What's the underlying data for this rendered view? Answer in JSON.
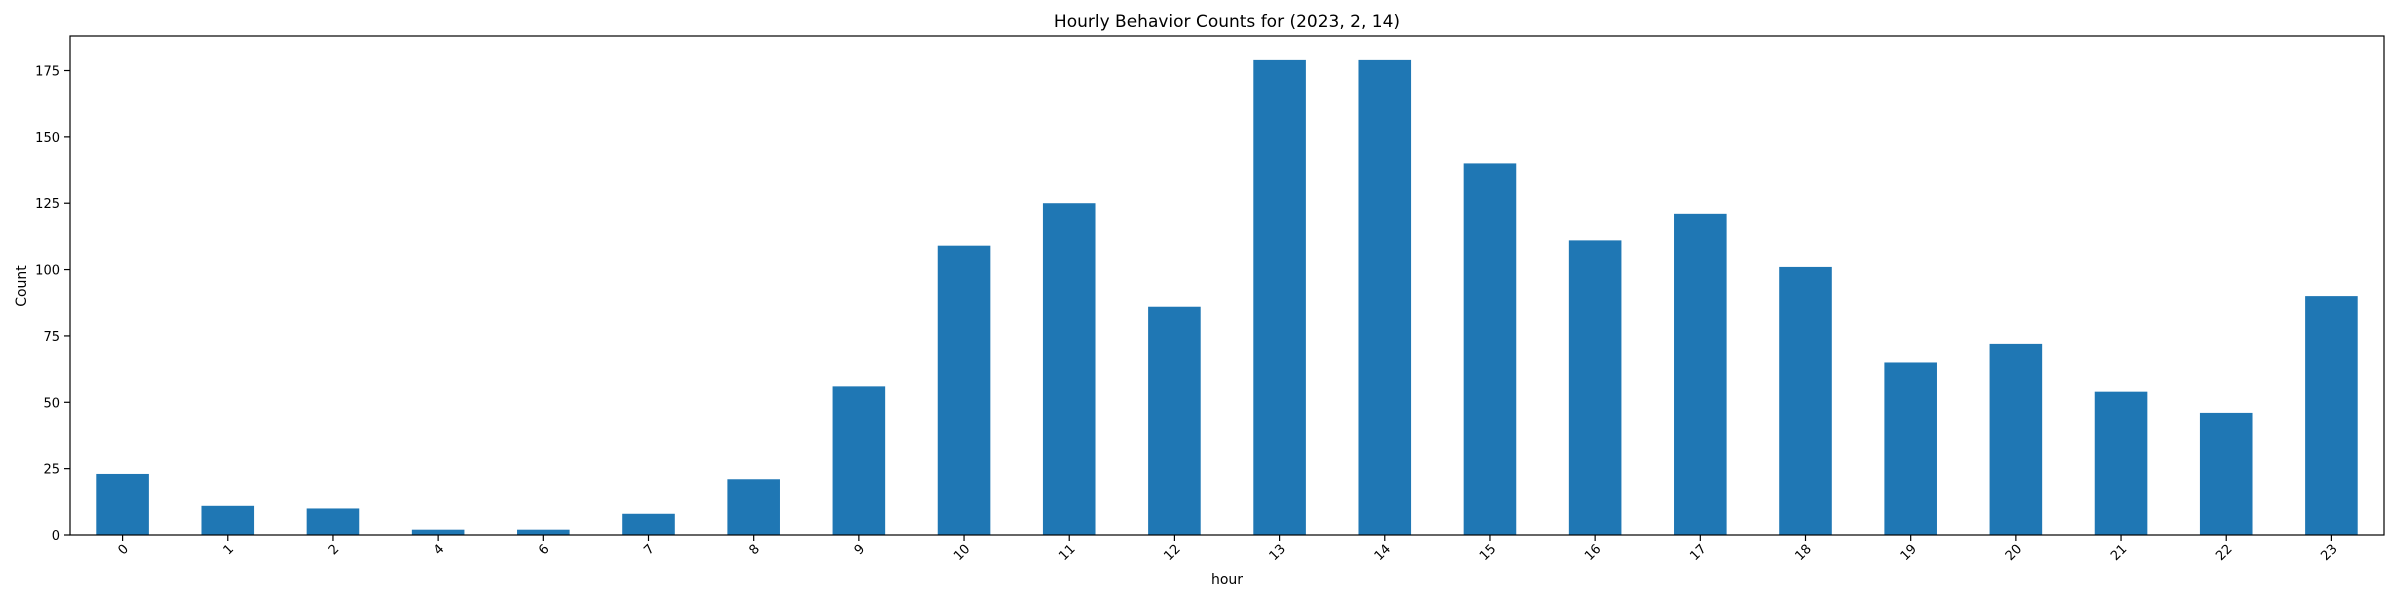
{
  "chart_data": {
    "type": "bar",
    "title": "Hourly Behavior Counts for (2023, 2, 14)",
    "xlabel": "hour",
    "ylabel": "Count",
    "categories": [
      "0",
      "1",
      "2",
      "4",
      "6",
      "7",
      "8",
      "9",
      "10",
      "11",
      "12",
      "13",
      "14",
      "15",
      "16",
      "17",
      "18",
      "19",
      "20",
      "21",
      "22",
      "23"
    ],
    "values": [
      23,
      11,
      10,
      2,
      2,
      8,
      21,
      56,
      109,
      125,
      86,
      179,
      179,
      140,
      111,
      121,
      101,
      65,
      72,
      54,
      46,
      90
    ],
    "ylim": [
      0,
      188
    ],
    "yticks": [
      0,
      25,
      50,
      75,
      100,
      125,
      150,
      175
    ],
    "grid": false,
    "legend": "none",
    "bar_color": "#1f77b4"
  }
}
